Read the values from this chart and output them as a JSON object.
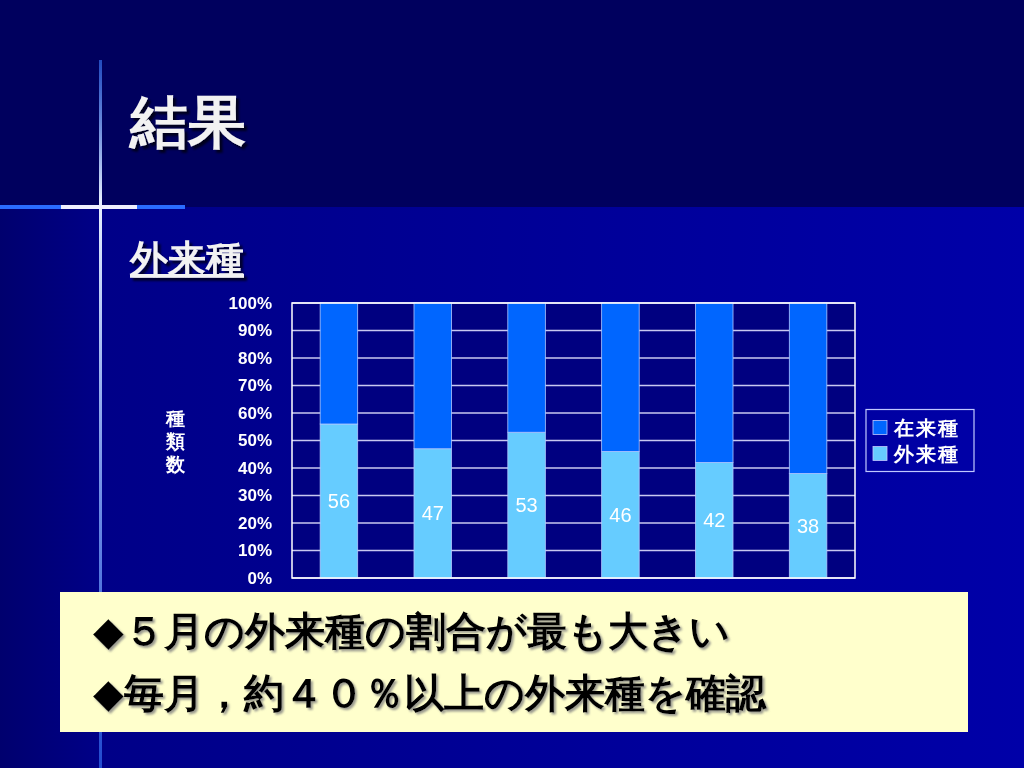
{
  "chart_data": {
    "type": "bar",
    "title": "結果",
    "subtitle": "外来種",
    "ylabel": "種類数",
    "categories": [
      null,
      null,
      null,
      null,
      null,
      null
    ],
    "series": [
      {
        "name": "外来種",
        "color": "#66ccff",
        "values": [
          56,
          47,
          53,
          46,
          42,
          38
        ],
        "value_labels": [
          "56",
          "47",
          "53",
          "46",
          "42",
          "38"
        ]
      },
      {
        "name": "在来種",
        "color": "#0066ff",
        "values": [
          44,
          53,
          47,
          54,
          58,
          62
        ]
      }
    ],
    "stacked": true,
    "ylim": [
      0,
      100
    ],
    "yticks": [
      {
        "value": 0,
        "label": "0%"
      },
      {
        "value": 10,
        "label": "10%"
      },
      {
        "value": 20,
        "label": "20%"
      },
      {
        "value": 30,
        "label": "30%"
      },
      {
        "value": 40,
        "label": "40%"
      },
      {
        "value": 50,
        "label": "50%"
      },
      {
        "value": 60,
        "label": "60%"
      },
      {
        "value": 70,
        "label": "70%"
      },
      {
        "value": 80,
        "label": "80%"
      },
      {
        "value": 90,
        "label": "90%"
      },
      {
        "value": 100,
        "label": "100%"
      }
    ],
    "grid": "y",
    "legend": "right",
    "annotations": [
      "◆５月の外来種の割合が最も大きい",
      "◆毎月，約４０％以上の外来種を確認"
    ]
  }
}
